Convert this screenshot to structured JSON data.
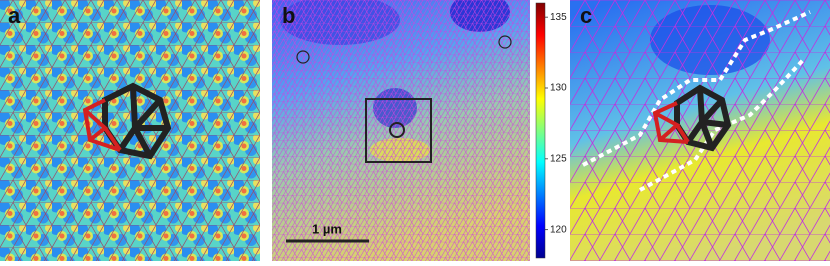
{
  "panels": [
    {
      "label": "a"
    },
    {
      "label": "b"
    },
    {
      "label": "c"
    }
  ],
  "scale_bar": {
    "label": "1 µm"
  },
  "colorbar": {
    "lim": [
      118,
      136
    ],
    "ticks": [
      135,
      130,
      125,
      120
    ]
  }
}
